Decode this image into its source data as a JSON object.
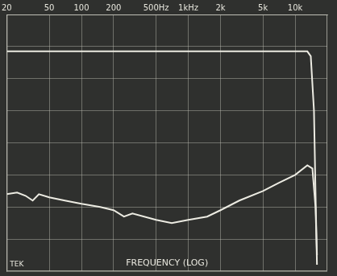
{
  "chart_data": {
    "type": "line",
    "x_label": "FREQUENCY (LOG)",
    "annotation": "TEK",
    "log": "x",
    "grid": true,
    "tick_labels": "x",
    "xlim": [
      20,
      20000
    ],
    "xticks": [
      20,
      50,
      100,
      200,
      {
        "value": 500,
        "label": "500Hz"
      },
      {
        "value": 1000,
        "label": "1kHz"
      },
      {
        "value": 2000,
        "label": "2k"
      },
      {
        "value": 5000,
        "label": "5k"
      },
      {
        "value": 10000,
        "label": "10k"
      }
    ],
    "ylim": [
      0,
      8
    ],
    "yticks": [
      0,
      1,
      2,
      3,
      4,
      5,
      6,
      7,
      8
    ],
    "series": [
      {
        "color": "#ecebe2",
        "x": [
          20,
          50,
          100,
          1000,
          5000,
          10000,
          13000,
          14000,
          15000,
          15500,
          16000
        ],
        "values": [
          6.85,
          6.85,
          6.85,
          6.85,
          6.85,
          6.85,
          6.85,
          6.7,
          5.0,
          2.5,
          0.2
        ]
      },
      {
        "color": "#ecebe2",
        "x": [
          20,
          25,
          30,
          35,
          40,
          50,
          70,
          100,
          150,
          200,
          250,
          300,
          500,
          700,
          1000,
          1500,
          2000,
          3000,
          5000,
          7000,
          10000,
          13000,
          14500,
          15500,
          16000
        ],
        "values": [
          2.4,
          2.45,
          2.35,
          2.2,
          2.4,
          2.3,
          2.2,
          2.1,
          2.0,
          1.9,
          1.7,
          1.8,
          1.6,
          1.5,
          1.6,
          1.7,
          1.9,
          2.2,
          2.5,
          2.75,
          3.0,
          3.3,
          3.2,
          2.0,
          0.5
        ]
      }
    ]
  }
}
